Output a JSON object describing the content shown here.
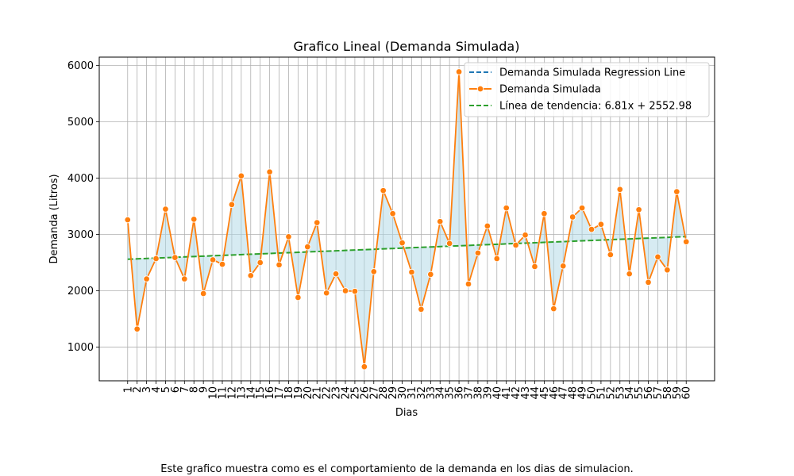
{
  "caption": "Este grafico muestra como es el comportamiento de la demanda en los dias de simulacion.",
  "chart_data": {
    "type": "line",
    "title": "Grafico Lineal (Demanda Simulada)",
    "xlabel": "Dias",
    "ylabel": "Demanda (Litros)",
    "ylim": [
      400,
      6150
    ],
    "xlim": [
      -2,
      63
    ],
    "yticks": [
      1000,
      2000,
      3000,
      4000,
      5000,
      6000
    ],
    "grid": true,
    "legend_position": "upper-right",
    "x": [
      1,
      2,
      3,
      4,
      5,
      6,
      7,
      8,
      9,
      10,
      11,
      12,
      13,
      14,
      15,
      16,
      17,
      18,
      19,
      20,
      21,
      22,
      23,
      24,
      25,
      26,
      27,
      28,
      29,
      30,
      31,
      32,
      33,
      34,
      35,
      36,
      37,
      38,
      39,
      40,
      41,
      42,
      43,
      44,
      45,
      46,
      47,
      48,
      49,
      50,
      51,
      52,
      53,
      54,
      55,
      56,
      57,
      58,
      59,
      60
    ],
    "xtick_labels": [
      "1",
      "2",
      "3",
      "4",
      "5",
      "6",
      "7",
      "8",
      "9",
      "10",
      "11",
      "12",
      "13",
      "14",
      "15",
      "16",
      "17",
      "18",
      "19",
      "20",
      "21",
      "22",
      "23",
      "24",
      "25",
      "26",
      "27",
      "28",
      "29",
      "30",
      "31",
      "32",
      "33",
      "34",
      "35",
      "36",
      "37",
      "38",
      "39",
      "40",
      "41",
      "42",
      "43",
      "44",
      "45",
      "46",
      "47",
      "48",
      "49",
      "50",
      "51",
      "52",
      "53",
      "54",
      "55",
      "56",
      "57",
      "58",
      "59",
      "60"
    ],
    "series": [
      {
        "name": "Demanda Simulada",
        "color": "#ff7f0e",
        "marker": "circle",
        "values": [
          3260,
          1320,
          2210,
          2570,
          3450,
          2590,
          2210,
          3270,
          1950,
          2550,
          2470,
          3530,
          4040,
          2270,
          2500,
          4110,
          2460,
          2960,
          1880,
          2780,
          3210,
          1960,
          2300,
          2000,
          1990,
          650,
          2340,
          3780,
          3370,
          2850,
          2330,
          1670,
          2290,
          3230,
          2840,
          5890,
          2120,
          2670,
          3150,
          2570,
          3470,
          2810,
          2990,
          2430,
          3370,
          1680,
          2440,
          3310,
          3470,
          3090,
          3180,
          2640,
          3800,
          2300,
          3440,
          2150,
          2600,
          2370,
          3760,
          2870
        ]
      }
    ],
    "trendline": {
      "name": "Línea de tendencia: 6.81x + 2552.98",
      "slope": 6.81,
      "intercept": 2552.98,
      "color": "#2ca02c",
      "style": "dashed"
    },
    "regression_line": {
      "name": "Demanda Simulada Regression Line",
      "color": "#1f77b4",
      "style": "dashed"
    },
    "fill_between_color": "#add8e6"
  }
}
